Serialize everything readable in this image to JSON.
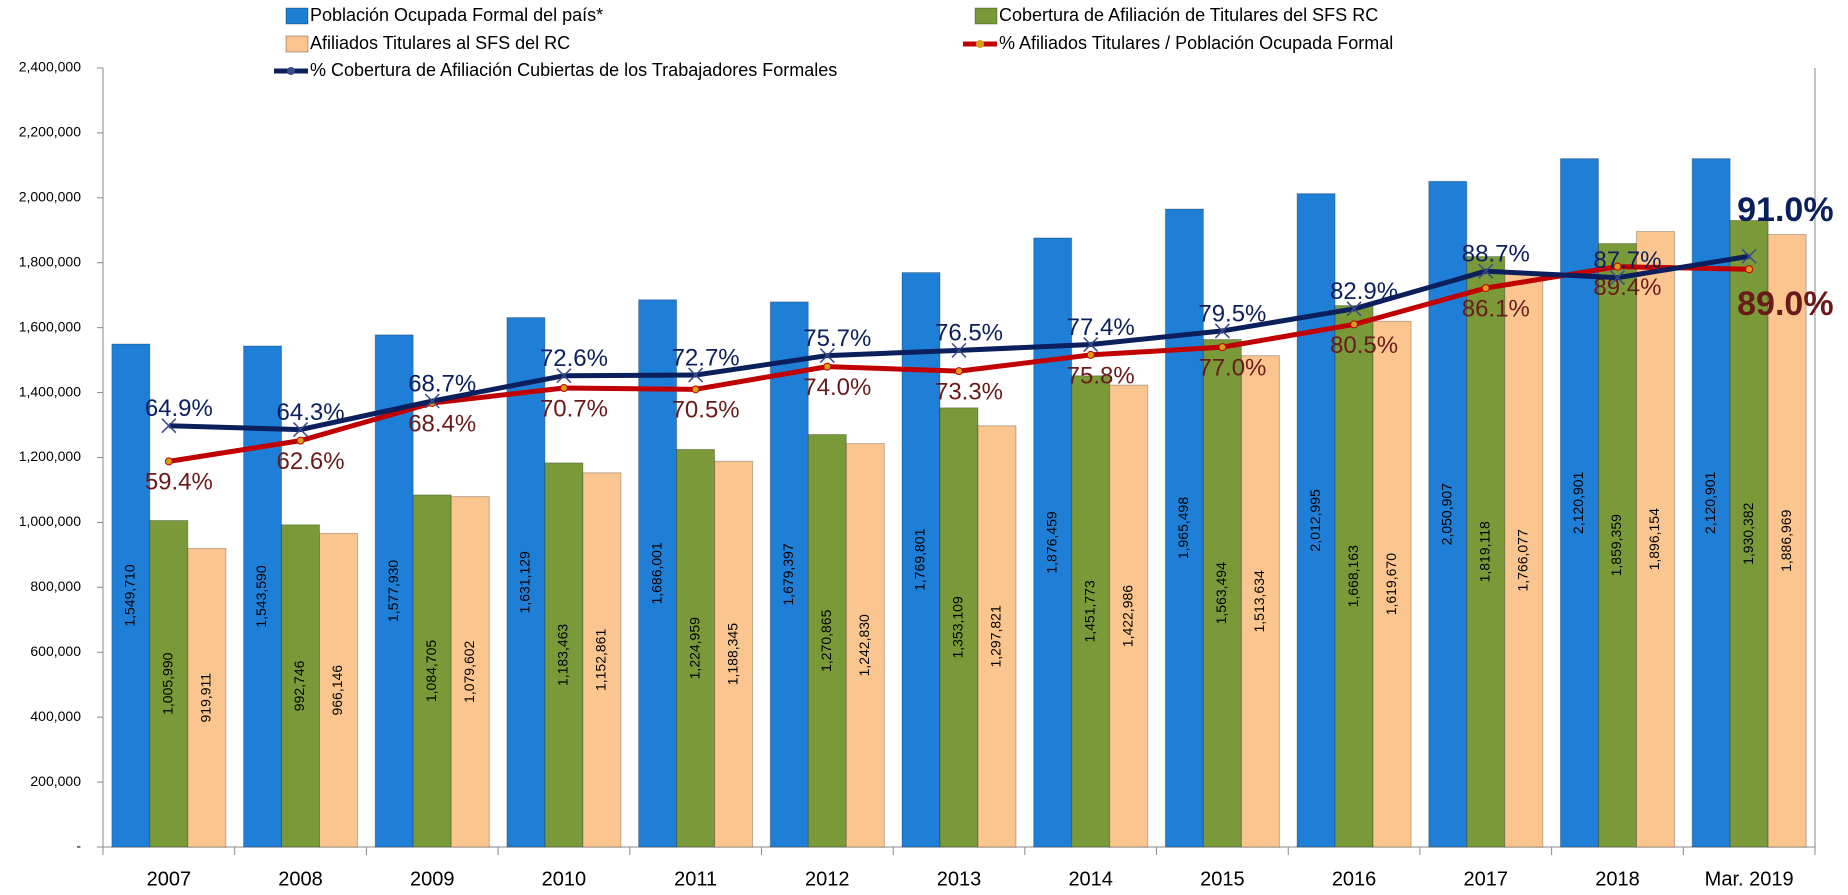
{
  "chart_data": {
    "type": "bar",
    "categories": [
      "2007",
      "2008",
      "2009",
      "2010",
      "2011",
      "2012",
      "2013",
      "2014",
      "2015",
      "2016",
      "2017",
      "2018",
      "Mar. 2019"
    ],
    "ylim": [
      0,
      2400000
    ],
    "yticks": [
      {
        "value": 0,
        "label": "-"
      },
      {
        "value": 200000,
        "label": "200,000"
      },
      {
        "value": 400000,
        "label": "400,000"
      },
      {
        "value": 600000,
        "label": "600,000"
      },
      {
        "value": 800000,
        "label": "800,000"
      },
      {
        "value": 1000000,
        "label": "1,000,000"
      },
      {
        "value": 1200000,
        "label": "1,200,000"
      },
      {
        "value": 1400000,
        "label": "1,400,000"
      },
      {
        "value": 1600000,
        "label": "1,600,000"
      },
      {
        "value": 1800000,
        "label": "1,800,000"
      },
      {
        "value": 2000000,
        "label": "2,000,000"
      },
      {
        "value": 2200000,
        "label": "2,200,000"
      },
      {
        "value": 2400000,
        "label": "2,400,000"
      }
    ],
    "y2lim": [
      0,
      120
    ],
    "series": [
      {
        "name": "Población Ocupada Formal del país*",
        "type": "bar",
        "color": "#1f7fd6",
        "values": [
          1549710,
          1543590,
          1577930,
          1631129,
          1686001,
          1679397,
          1769801,
          1876459,
          1965498,
          2012995,
          2050907,
          2120901,
          2120901
        ],
        "value_labels": [
          "1,549,710",
          "1,543,590",
          "1,577,930",
          "1,631,129",
          "1,686,001",
          "1,679,397",
          "1,769,801",
          "1,876,459",
          "1,965,498",
          "2,012,995",
          "2,050,907",
          "2,120,901",
          "2,120,901"
        ]
      },
      {
        "name": "Cobertura de Afiliación de  Titulares del SFS RC",
        "type": "bar",
        "color": "#7a9a3a",
        "values": [
          1005990,
          992746,
          1084705,
          1183463,
          1224959,
          1270865,
          1353109,
          1451773,
          1563494,
          1668163,
          1819118,
          1859359,
          1930382
        ],
        "value_labels": [
          "1,005,990",
          "992,746",
          "1,084,705",
          "1,183,463",
          "1,224,959",
          "1,270,865",
          "1,353,109",
          "1,451,773",
          "1,563,494",
          "1,668,163",
          "1,819,118",
          "1,859,359",
          "1,930,382"
        ]
      },
      {
        "name": "Afiliados Titulares  al SFS del RC",
        "type": "bar",
        "color": "#fbc58f",
        "values": [
          919911,
          966146,
          1079602,
          1152861,
          1188345,
          1242830,
          1297821,
          1422986,
          1513634,
          1619670,
          1766077,
          1896154,
          1886969
        ],
        "value_labels": [
          "919,911",
          "966,146",
          "1,079,602",
          "1,152,861",
          "1,188,345",
          "1,242,830",
          "1,297,821",
          "1,422,986",
          "1,513,634",
          "1,619,670",
          "1,766,077",
          "1,896,154",
          "1,886,969"
        ]
      },
      {
        "name": "% Afiliados Titulares / Población Ocupada Formal",
        "type": "line",
        "axis": "y2",
        "color": "#c00000",
        "label_color": "#6b1a1a",
        "values": [
          59.4,
          62.6,
          68.4,
          70.7,
          70.5,
          74.0,
          73.3,
          75.8,
          77.0,
          80.5,
          86.1,
          89.4,
          89.0
        ],
        "value_labels": [
          "59.4%",
          "62.6%",
          "68.4%",
          "70.7%",
          "70.5%",
          "74.0%",
          "73.3%",
          "75.8%",
          "77.0%",
          "80.5%",
          "86.1%",
          "89.4%",
          "89.0%"
        ]
      },
      {
        "name": "% Cobertura de Afiliación Cubiertas de los Trabajadores Formales",
        "type": "line",
        "axis": "y2",
        "color": "#0a1f5c",
        "label_color": "#0a1f5c",
        "values": [
          64.9,
          64.3,
          68.7,
          72.6,
          72.7,
          75.7,
          76.5,
          77.4,
          79.5,
          82.9,
          88.7,
          87.7,
          91.0
        ],
        "value_labels": [
          "64.9%",
          "64.3%",
          "68.7%",
          "72.6%",
          "72.7%",
          "75.7%",
          "76.5%",
          "77.4%",
          "79.5%",
          "82.9%",
          "88.7%",
          "87.7%",
          "91.0%"
        ]
      }
    ]
  }
}
